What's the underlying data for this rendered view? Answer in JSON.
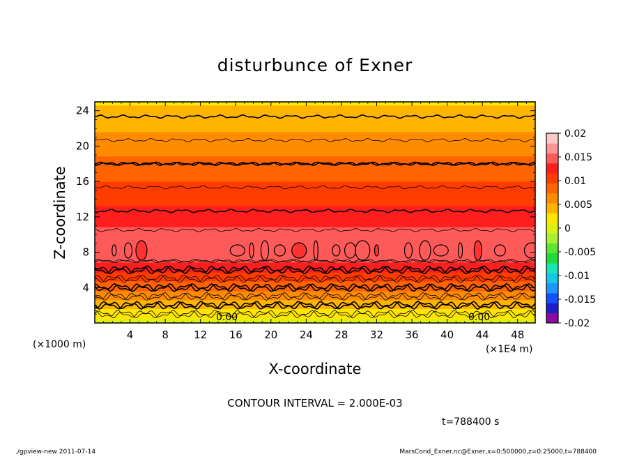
{
  "chart_data": {
    "type": "heatmap",
    "title": "disturbunce of Exner",
    "xlabel": "X-coordinate",
    "ylabel": "Z-coordinate",
    "x_unit_left": "(×1000 m)",
    "x_unit_right": "(×1E4 m)",
    "x_ticks": [
      "4",
      "8",
      "12",
      "16",
      "20",
      "24",
      "28",
      "32",
      "36",
      "40",
      "44",
      "48"
    ],
    "x_tick_values": [
      4,
      8,
      12,
      16,
      20,
      24,
      28,
      32,
      36,
      40,
      44,
      48
    ],
    "xlim": [
      0,
      50
    ],
    "y_ticks": [
      "4",
      "8",
      "12",
      "16",
      "20",
      "24"
    ],
    "y_tick_values": [
      4,
      8,
      12,
      16,
      20,
      24
    ],
    "ylim": [
      0,
      25
    ],
    "colorbar": {
      "labels": [
        "0.02",
        "0.015",
        "0.01",
        "0.005",
        "0",
        "-0.005",
        "-0.01",
        "-0.015",
        "-0.02"
      ],
      "values": [
        0.02,
        0.015,
        0.01,
        0.005,
        0,
        -0.005,
        -0.01,
        -0.015,
        -0.02
      ],
      "range": [
        -0.02,
        0.02
      ],
      "colors": [
        "#8c0aa0",
        "#1e1ec8",
        "#1450ff",
        "#1e96ff",
        "#14c8e6",
        "#14e6b4",
        "#1edc3c",
        "#5ae632",
        "#aaf032",
        "#dcf014",
        "#ffe600",
        "#ffb400",
        "#ff8c00",
        "#ff6400",
        "#ff3c00",
        "#ff1e1e",
        "#ff5a5a",
        "#ff9696",
        "#ffc8c8"
      ]
    },
    "profile": {
      "z": [
        0,
        1,
        2,
        3,
        4,
        5,
        6,
        7,
        8,
        9,
        10,
        11,
        12,
        14,
        16,
        18,
        20,
        22,
        24,
        25
      ],
      "value": [
        0.0,
        0.002,
        0.004,
        0.006,
        0.008,
        0.01,
        0.012,
        0.014,
        0.0155,
        0.015,
        0.0145,
        0.0135,
        0.0125,
        0.011,
        0.0095,
        0.008,
        0.0065,
        0.005,
        0.0035,
        0.003
      ]
    },
    "contour_labels": [
      "0.00",
      "0.00"
    ],
    "contour_interval_text": "CONTOUR INTERVAL = 2.000E-03",
    "time_text": "t=788400 s"
  },
  "footer": {
    "left": "./gpview-new   2011-07-14",
    "right": "MarsCond_Exner.nc@Exner,x=0:500000,z=0:25000,t=788400"
  }
}
